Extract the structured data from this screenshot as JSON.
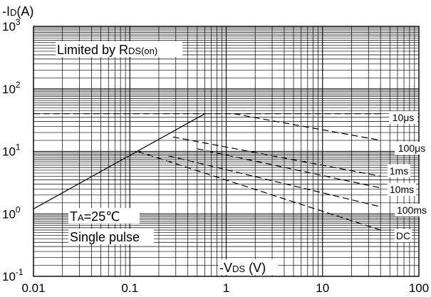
{
  "chart_data": {
    "type": "line",
    "x_scale": "log",
    "y_scale": "log",
    "xlim": [
      0.01,
      100
    ],
    "ylim": [
      0.1,
      1000
    ],
    "grid": true,
    "xlabel": "-VDS (V)",
    "ylabel": "-ID(A)",
    "x_ticks": [
      {
        "value": 0.01,
        "label": "0.01"
      },
      {
        "value": 0.1,
        "label": "0.1"
      },
      {
        "value": 1,
        "label": "1"
      },
      {
        "value": 10,
        "label": "10"
      },
      {
        "value": 100,
        "label": "100"
      }
    ],
    "y_ticks": [
      {
        "value": 0.1,
        "base": "10",
        "exp": "-1"
      },
      {
        "value": 1,
        "base": "10",
        "exp": "0"
      },
      {
        "value": 10,
        "base": "10",
        "exp": "1"
      },
      {
        "value": 100,
        "base": "10",
        "exp": "2"
      },
      {
        "value": 1000,
        "base": "10",
        "exp": "3"
      }
    ],
    "annotations": {
      "rds_limit": "Limited by RDS(on)",
      "ta": "TA=25℃",
      "pulse": "Single pulse"
    },
    "series": [
      {
        "name": "Limited by RDS(on)",
        "style": "solid",
        "points": [
          [
            0.01,
            1.2
          ],
          [
            0.6,
            40
          ]
        ]
      },
      {
        "name": "10μs",
        "style": "dashed",
        "points": [
          [
            0.6,
            40
          ],
          [
            40,
            40
          ]
        ]
      },
      {
        "name": "100μs",
        "style": "dashed",
        "points": [
          [
            1.2,
            40
          ],
          [
            40,
            15
          ]
        ]
      },
      {
        "name": "1ms",
        "style": "dashed",
        "points": [
          [
            0.28,
            17
          ],
          [
            40,
            4
          ]
        ]
      },
      {
        "name": "10ms",
        "style": "dashed",
        "points": [
          [
            0.5,
            11
          ],
          [
            40,
            2.6
          ]
        ]
      },
      {
        "name": "100ms",
        "style": "dashed",
        "points": [
          [
            0.25,
            8.5
          ],
          [
            40,
            1.3
          ]
        ]
      },
      {
        "name": "DC",
        "style": "dashed",
        "points": [
          [
            0.12,
            10
          ],
          [
            40,
            0.55
          ]
        ]
      }
    ],
    "reference_lines": [
      {
        "style": "dashed",
        "points": [
          [
            0.01,
            40
          ],
          [
            0.6,
            40
          ]
        ]
      },
      {
        "style": "dashed",
        "points": [
          [
            0.01,
            10
          ],
          [
            0.12,
            10
          ]
        ]
      }
    ],
    "curve_labels": [
      "10μs",
      "100μs",
      "1ms",
      "10ms",
      "100ms",
      "DC"
    ]
  }
}
